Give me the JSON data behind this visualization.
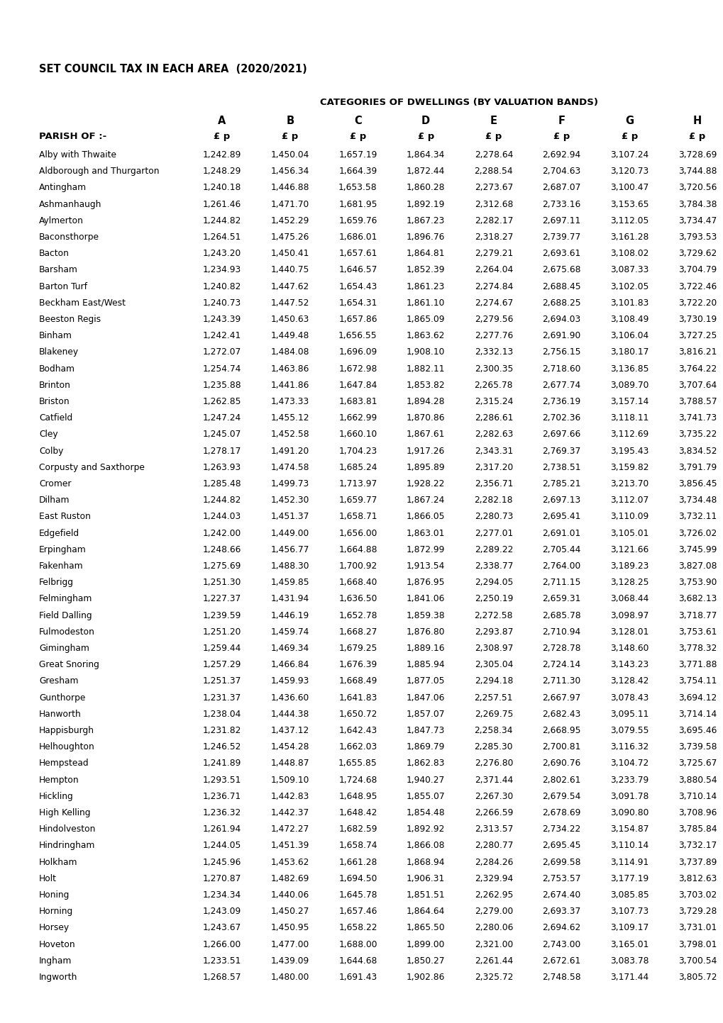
{
  "title": "SET COUNCIL TAX IN EACH AREA  (2020/2021)",
  "subtitle": "CATEGORIES OF DWELLINGS (BY VALUATION BANDS)",
  "columns": [
    "A",
    "B",
    "C",
    "D",
    "E",
    "F",
    "G",
    "H"
  ],
  "col_unit": "£ p",
  "parish_label": "PARISH OF :-",
  "rows": [
    [
      "Alby with Thwaite",
      1242.89,
      1450.04,
      1657.19,
      1864.34,
      2278.64,
      2692.94,
      3107.24,
      3728.69
    ],
    [
      "Aldborough and Thurgarton",
      1248.29,
      1456.34,
      1664.39,
      1872.44,
      2288.54,
      2704.63,
      3120.73,
      3744.88
    ],
    [
      "Antingham",
      1240.18,
      1446.88,
      1653.58,
      1860.28,
      2273.67,
      2687.07,
      3100.47,
      3720.56
    ],
    [
      "Ashmanhaugh",
      1261.46,
      1471.7,
      1681.95,
      1892.19,
      2312.68,
      2733.16,
      3153.65,
      3784.38
    ],
    [
      "Aylmerton",
      1244.82,
      1452.29,
      1659.76,
      1867.23,
      2282.17,
      2697.11,
      3112.05,
      3734.47
    ],
    [
      "Baconsthorpe",
      1264.51,
      1475.26,
      1686.01,
      1896.76,
      2318.27,
      2739.77,
      3161.28,
      3793.53
    ],
    [
      "Bacton",
      1243.2,
      1450.41,
      1657.61,
      1864.81,
      2279.21,
      2693.61,
      3108.02,
      3729.62
    ],
    [
      "Barsham",
      1234.93,
      1440.75,
      1646.57,
      1852.39,
      2264.04,
      2675.68,
      3087.33,
      3704.79
    ],
    [
      "Barton Turf",
      1240.82,
      1447.62,
      1654.43,
      1861.23,
      2274.84,
      2688.45,
      3102.05,
      3722.46
    ],
    [
      "Beckham East/West",
      1240.73,
      1447.52,
      1654.31,
      1861.1,
      2274.67,
      2688.25,
      3101.83,
      3722.2
    ],
    [
      "Beeston Regis",
      1243.39,
      1450.63,
      1657.86,
      1865.09,
      2279.56,
      2694.03,
      3108.49,
      3730.19
    ],
    [
      "Binham",
      1242.41,
      1449.48,
      1656.55,
      1863.62,
      2277.76,
      2691.9,
      3106.04,
      3727.25
    ],
    [
      "Blakeney",
      1272.07,
      1484.08,
      1696.09,
      1908.1,
      2332.13,
      2756.15,
      3180.17,
      3816.21
    ],
    [
      "Bodham",
      1254.74,
      1463.86,
      1672.98,
      1882.11,
      2300.35,
      2718.6,
      3136.85,
      3764.22
    ],
    [
      "Brinton",
      1235.88,
      1441.86,
      1647.84,
      1853.82,
      2265.78,
      2677.74,
      3089.7,
      3707.64
    ],
    [
      "Briston",
      1262.85,
      1473.33,
      1683.81,
      1894.28,
      2315.24,
      2736.19,
      3157.14,
      3788.57
    ],
    [
      "Catfield",
      1247.24,
      1455.12,
      1662.99,
      1870.86,
      2286.61,
      2702.36,
      3118.11,
      3741.73
    ],
    [
      "Cley",
      1245.07,
      1452.58,
      1660.1,
      1867.61,
      2282.63,
      2697.66,
      3112.69,
      3735.22
    ],
    [
      "Colby",
      1278.17,
      1491.2,
      1704.23,
      1917.26,
      2343.31,
      2769.37,
      3195.43,
      3834.52
    ],
    [
      "Corpusty and Saxthorpe",
      1263.93,
      1474.58,
      1685.24,
      1895.89,
      2317.2,
      2738.51,
      3159.82,
      3791.79
    ],
    [
      "Cromer",
      1285.48,
      1499.73,
      1713.97,
      1928.22,
      2356.71,
      2785.21,
      3213.7,
      3856.45
    ],
    [
      "Dilham",
      1244.82,
      1452.3,
      1659.77,
      1867.24,
      2282.18,
      2697.13,
      3112.07,
      3734.48
    ],
    [
      "East Ruston",
      1244.03,
      1451.37,
      1658.71,
      1866.05,
      2280.73,
      2695.41,
      3110.09,
      3732.11
    ],
    [
      "Edgefield",
      1242.0,
      1449.0,
      1656.0,
      1863.01,
      2277.01,
      2691.01,
      3105.01,
      3726.02
    ],
    [
      "Erpingham",
      1248.66,
      1456.77,
      1664.88,
      1872.99,
      2289.22,
      2705.44,
      3121.66,
      3745.99
    ],
    [
      "Fakenham",
      1275.69,
      1488.3,
      1700.92,
      1913.54,
      2338.77,
      2764.0,
      3189.23,
      3827.08
    ],
    [
      "Felbrigg",
      1251.3,
      1459.85,
      1668.4,
      1876.95,
      2294.05,
      2711.15,
      3128.25,
      3753.9
    ],
    [
      "Felmingham",
      1227.37,
      1431.94,
      1636.5,
      1841.06,
      2250.19,
      2659.31,
      3068.44,
      3682.13
    ],
    [
      "Field Dalling",
      1239.59,
      1446.19,
      1652.78,
      1859.38,
      2272.58,
      2685.78,
      3098.97,
      3718.77
    ],
    [
      "Fulmodeston",
      1251.2,
      1459.74,
      1668.27,
      1876.8,
      2293.87,
      2710.94,
      3128.01,
      3753.61
    ],
    [
      "Gimingham",
      1259.44,
      1469.34,
      1679.25,
      1889.16,
      2308.97,
      2728.78,
      3148.6,
      3778.32
    ],
    [
      "Great Snoring",
      1257.29,
      1466.84,
      1676.39,
      1885.94,
      2305.04,
      2724.14,
      3143.23,
      3771.88
    ],
    [
      "Gresham",
      1251.37,
      1459.93,
      1668.49,
      1877.05,
      2294.18,
      2711.3,
      3128.42,
      3754.11
    ],
    [
      "Gunthorpe",
      1231.37,
      1436.6,
      1641.83,
      1847.06,
      2257.51,
      2667.97,
      3078.43,
      3694.12
    ],
    [
      "Hanworth",
      1238.04,
      1444.38,
      1650.72,
      1857.07,
      2269.75,
      2682.43,
      3095.11,
      3714.14
    ],
    [
      "Happisburgh",
      1231.82,
      1437.12,
      1642.43,
      1847.73,
      2258.34,
      2668.95,
      3079.55,
      3695.46
    ],
    [
      "Helhoughton",
      1246.52,
      1454.28,
      1662.03,
      1869.79,
      2285.3,
      2700.81,
      3116.32,
      3739.58
    ],
    [
      "Hempstead",
      1241.89,
      1448.87,
      1655.85,
      1862.83,
      2276.8,
      2690.76,
      3104.72,
      3725.67
    ],
    [
      "Hempton",
      1293.51,
      1509.1,
      1724.68,
      1940.27,
      2371.44,
      2802.61,
      3233.79,
      3880.54
    ],
    [
      "Hickling",
      1236.71,
      1442.83,
      1648.95,
      1855.07,
      2267.3,
      2679.54,
      3091.78,
      3710.14
    ],
    [
      "High Kelling",
      1236.32,
      1442.37,
      1648.42,
      1854.48,
      2266.59,
      2678.69,
      3090.8,
      3708.96
    ],
    [
      "Hindolveston",
      1261.94,
      1472.27,
      1682.59,
      1892.92,
      2313.57,
      2734.22,
      3154.87,
      3785.84
    ],
    [
      "Hindringham",
      1244.05,
      1451.39,
      1658.74,
      1866.08,
      2280.77,
      2695.45,
      3110.14,
      3732.17
    ],
    [
      "Holkham",
      1245.96,
      1453.62,
      1661.28,
      1868.94,
      2284.26,
      2699.58,
      3114.91,
      3737.89
    ],
    [
      "Holt",
      1270.87,
      1482.69,
      1694.5,
      1906.31,
      2329.94,
      2753.57,
      3177.19,
      3812.63
    ],
    [
      "Honing",
      1234.34,
      1440.06,
      1645.78,
      1851.51,
      2262.95,
      2674.4,
      3085.85,
      3703.02
    ],
    [
      "Horning",
      1243.09,
      1450.27,
      1657.46,
      1864.64,
      2279.0,
      2693.37,
      3107.73,
      3729.28
    ],
    [
      "Horsey",
      1243.67,
      1450.95,
      1658.22,
      1865.5,
      2280.06,
      2694.62,
      3109.17,
      3731.01
    ],
    [
      "Hoveton",
      1266.0,
      1477.0,
      1688.0,
      1899.0,
      2321.0,
      2743.0,
      3165.01,
      3798.01
    ],
    [
      "Ingham",
      1233.51,
      1439.09,
      1644.68,
      1850.27,
      2261.44,
      2672.61,
      3083.78,
      3700.54
    ],
    [
      "Ingworth",
      1268.57,
      1480.0,
      1691.43,
      1902.86,
      2325.72,
      2748.58,
      3171.44,
      3805.72
    ]
  ],
  "bg_color": "#ffffff",
  "text_color": "#000000",
  "title_fontsize": 10.5,
  "subtitle_fontsize": 9.5,
  "header_fontsize": 9.5,
  "data_fontsize": 8.8
}
